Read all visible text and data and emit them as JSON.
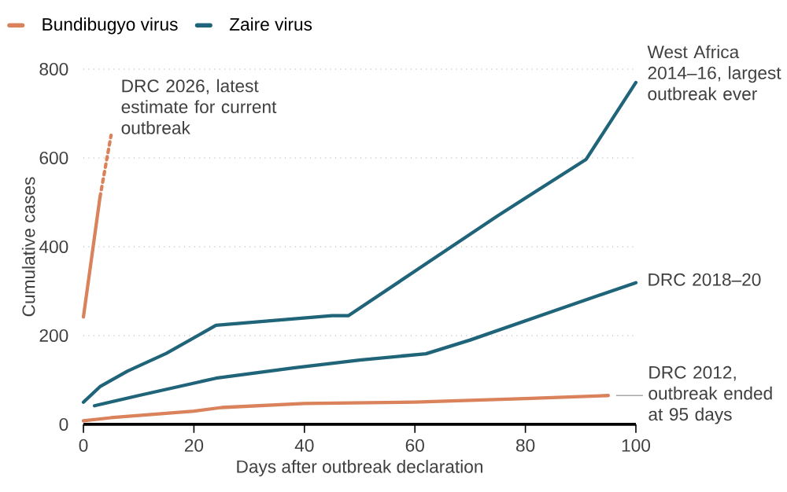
{
  "chart_data": {
    "type": "line",
    "xlabel": "Days after outbreak declaration",
    "ylabel": "Cumulative cases",
    "xlim": [
      0,
      100
    ],
    "xticks": [
      0,
      20,
      40,
      60,
      80,
      100
    ],
    "ylim": [
      0,
      800
    ],
    "yticks": [
      0,
      200,
      400,
      600,
      800
    ],
    "grid": "y",
    "legend": "top left",
    "series": [
      {
        "name": "Bundibugyo virus",
        "color": "#d9825b",
        "x": [
          0,
          3
        ],
        "values": [
          242,
          512
        ]
      },
      {
        "color": "#d9825b",
        "line_style": "dotted",
        "x": [
          3,
          5
        ],
        "values": [
          512,
          651
        ]
      },
      {
        "color": "#d9825b",
        "x": [
          0,
          5,
          20,
          25,
          40,
          60,
          80,
          95
        ],
        "values": [
          8,
          15,
          30,
          38,
          47,
          50,
          58,
          65
        ]
      },
      {
        "name": "Zaire virus",
        "color": "#1f6478",
        "x": [
          0,
          3,
          8,
          15,
          24,
          45,
          48,
          60,
          75,
          91,
          100
        ],
        "values": [
          50,
          85,
          120,
          160,
          223,
          245,
          245,
          345,
          470,
          597,
          770
        ]
      },
      {
        "color": "#1f6478",
        "x": [
          2,
          10,
          24,
          38,
          50,
          62,
          70,
          85,
          100
        ],
        "values": [
          42,
          65,
          104,
          127,
          145,
          159,
          190,
          255,
          319
        ]
      }
    ],
    "annotations": [
      {
        "text": "DRC 2026, latest estimate for current outbreak",
        "x": 5,
        "y": 651
      },
      {
        "text": "West Africa 2014–16, largest outbreak ever",
        "x": 100,
        "y": 770
      },
      {
        "text": "DRC 2018–20",
        "x": 100,
        "y": 319
      },
      {
        "text": "DRC 2012, outbreak ended at 95 days",
        "x": 95,
        "y": 65
      }
    ]
  }
}
